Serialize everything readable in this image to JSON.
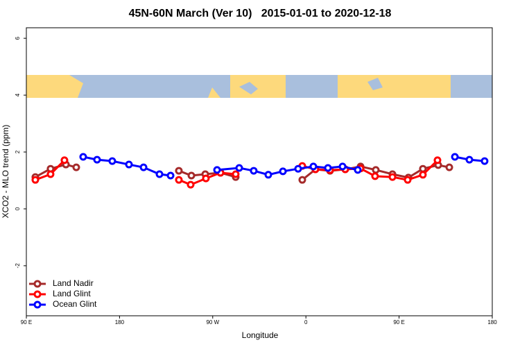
{
  "chart_data": {
    "type": "line",
    "title": "45N-60N March (Ver 10)   2015-01-01 to 2020-12-18",
    "x_label": "Longitude",
    "y_label": "XCO2 - MLO trend (ppm)",
    "xlim": [
      90,
      540
    ],
    "ylim": [
      -3.76,
      6.37
    ],
    "xticks": [
      {
        "value": 90,
        "label": "90 E"
      },
      {
        "value": 180,
        "label": "180"
      },
      {
        "value": 270,
        "label": "90 W"
      },
      {
        "value": 360,
        "label": "0"
      },
      {
        "value": 450,
        "label": "90 E"
      },
      {
        "value": 540,
        "label": "180"
      }
    ],
    "yticks": [
      -2,
      0,
      2,
      4,
      6
    ],
    "legend": "bottomleft",
    "series": [
      {
        "name": "Land Nadir",
        "color": "#a52a2a",
        "x": [
          98.7,
          113.4,
          128.2,
          138.2,
          null,
          237.3,
          249.4,
          262.8,
          277.5,
          292.2,
          null,
          356.5,
          369.2,
          383.3,
          398.0,
          412.8,
          427.5,
          443.6,
          459.0,
          473.0,
          487.8,
          498.5
        ],
        "values": [
          1.12,
          1.41,
          1.56,
          1.46,
          null,
          1.34,
          1.17,
          1.22,
          1.27,
          1.12,
          null,
          1.02,
          1.39,
          1.34,
          1.39,
          1.49,
          1.37,
          1.22,
          1.1,
          1.41,
          1.54,
          1.46
        ]
      },
      {
        "name": "Land Glint",
        "color": "#ff0000",
        "x": [
          98.7,
          113.4,
          126.8,
          null,
          237.3,
          248.7,
          263.4,
          277.5,
          292.2,
          null,
          356.5,
          369.2,
          383.3,
          398.0,
          412.8,
          426.8,
          443.6,
          458.3,
          473.0,
          487.1
        ],
        "values": [
          1.02,
          1.22,
          1.71,
          null,
          1.02,
          0.85,
          1.07,
          1.27,
          1.22,
          null,
          1.51,
          1.39,
          1.36,
          1.39,
          1.42,
          1.15,
          1.12,
          1.02,
          1.2,
          1.71
        ]
      },
      {
        "name": "Ocean Glint",
        "color": "#0000ff",
        "x": [
          144.9,
          158.3,
          173.0,
          189.1,
          203.2,
          218.6,
          229.3,
          null,
          274.2,
          295.6,
          309.6,
          323.7,
          337.8,
          352.5,
          367.2,
          381.3,
          395.4,
          410.1,
          null,
          503.9,
          517.9,
          532.6
        ],
        "values": [
          1.83,
          1.73,
          1.68,
          1.56,
          1.46,
          1.22,
          1.17,
          null,
          1.37,
          1.44,
          1.34,
          1.2,
          1.32,
          1.41,
          1.49,
          1.44,
          1.49,
          1.37,
          null,
          1.83,
          1.73,
          1.68
        ]
      }
    ]
  }
}
